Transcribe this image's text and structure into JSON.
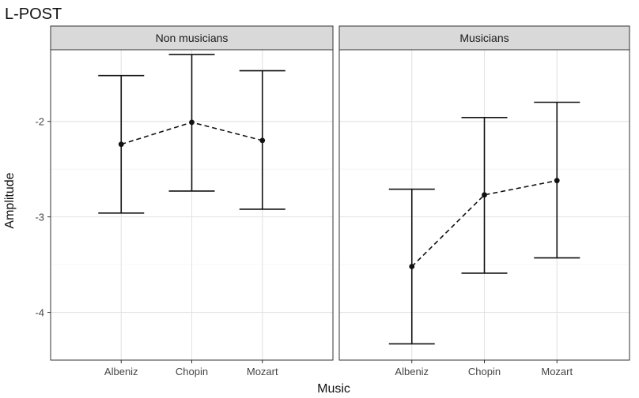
{
  "chart_data": {
    "type": "errorbar",
    "title": "L-POST",
    "xlabel": "Music",
    "ylabel": "Amplitude",
    "categories": [
      "Albeniz",
      "Chopin",
      "Mozart"
    ],
    "ylim": [
      -4.5,
      -1.25
    ],
    "yticks": [
      -4,
      -3,
      -2
    ],
    "ytick_labels": [
      "-4",
      "-3",
      "-2"
    ],
    "grid": true,
    "panels": [
      {
        "name": "Non musicians",
        "points": [
          {
            "category": "Albeniz",
            "mean": -2.24,
            "lower": -2.96,
            "upper": -1.52
          },
          {
            "category": "Chopin",
            "mean": -2.01,
            "lower": -2.73,
            "upper": -1.3
          },
          {
            "category": "Mozart",
            "mean": -2.2,
            "lower": -2.92,
            "upper": -1.47
          }
        ]
      },
      {
        "name": "Musicians",
        "points": [
          {
            "category": "Albeniz",
            "mean": -3.52,
            "lower": -4.33,
            "upper": -2.71
          },
          {
            "category": "Chopin",
            "mean": -2.77,
            "lower": -3.59,
            "upper": -1.96
          },
          {
            "category": "Mozart",
            "mean": -2.62,
            "lower": -3.43,
            "upper": -1.8
          }
        ]
      }
    ]
  }
}
